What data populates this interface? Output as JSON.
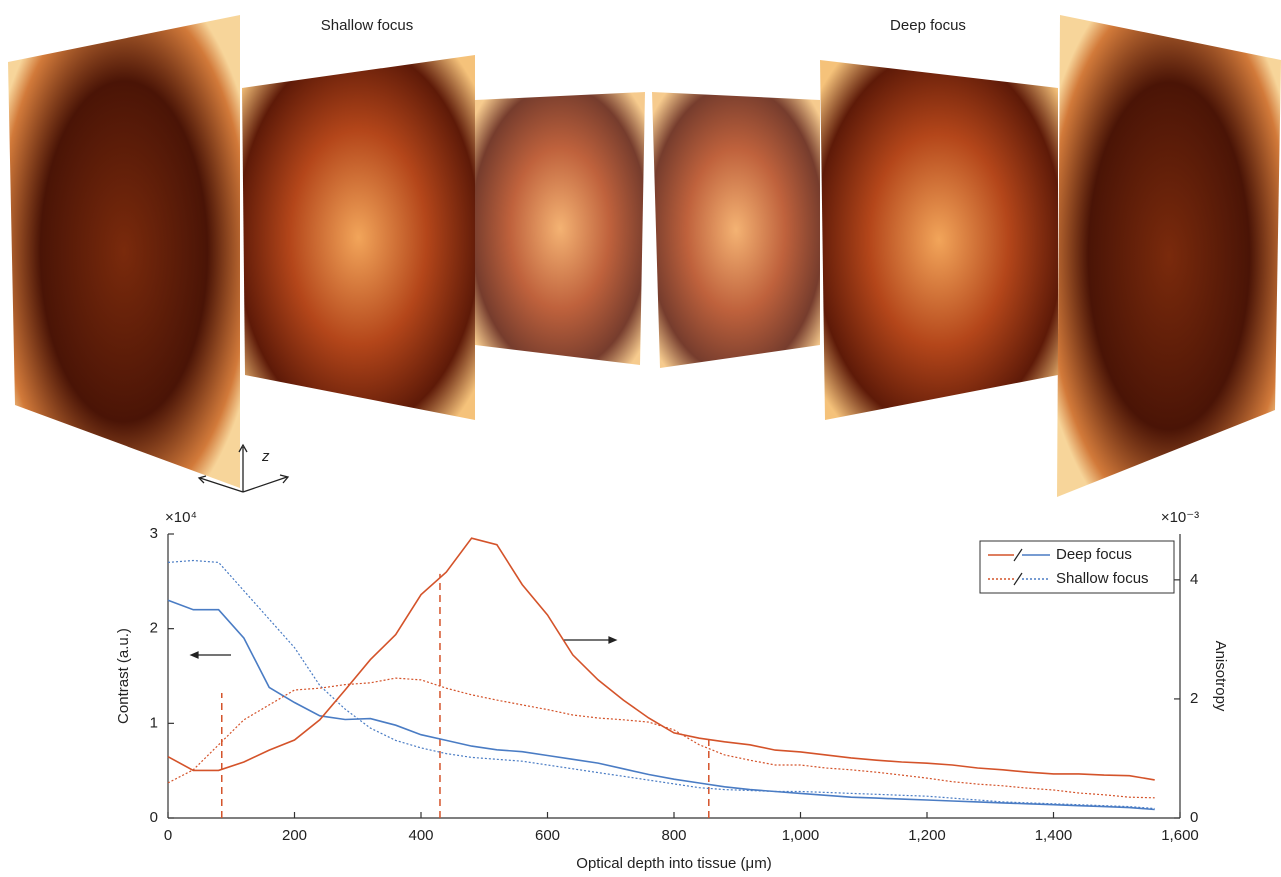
{
  "figure": {
    "left_label": "Shallow focus",
    "right_label": "Deep focus",
    "axis_label": "z"
  },
  "chart_data": {
    "type": "line",
    "xlabel": "Optical depth into tissue (μm)",
    "ylabel": "Contrast (a.u.)",
    "y2label": "Anisotropy",
    "y_multiplier": "×10⁴",
    "y2_multiplier": "×10⁻³",
    "x": [
      0,
      40,
      80,
      120,
      160,
      200,
      240,
      280,
      320,
      360,
      400,
      440,
      480,
      520,
      560,
      600,
      640,
      680,
      720,
      760,
      800,
      840,
      880,
      920,
      960,
      1000,
      1040,
      1080,
      1120,
      1160,
      1200,
      1240,
      1280,
      1320,
      1360,
      1400,
      1440,
      1480,
      1520,
      1560
    ],
    "xlim": [
      0,
      1600
    ],
    "xticks": [
      0,
      200,
      400,
      600,
      800,
      {
        "value": 1000,
        "label": "1,000"
      },
      {
        "value": 1200,
        "label": "1,200"
      },
      {
        "value": 1400,
        "label": "1,400"
      },
      {
        "value": 1600,
        "label": "1,600"
      }
    ],
    "ylim": [
      0,
      3
    ],
    "yticks": [
      0,
      1,
      2,
      3
    ],
    "y2lim": [
      0,
      4.77
    ],
    "y2ticks": [
      0,
      2,
      4
    ],
    "series": [
      {
        "name": "Deep focus",
        "color": "#4a7cc4",
        "style": "solid",
        "values": [
          2.3,
          2.2,
          2.2,
          1.9,
          1.38,
          1.22,
          1.08,
          1.04,
          1.05,
          0.98,
          0.88,
          0.82,
          0.76,
          0.72,
          0.7,
          0.66,
          0.62,
          0.58,
          0.52,
          0.46,
          0.41,
          0.37,
          0.33,
          0.3,
          0.28,
          0.26,
          0.24,
          0.22,
          0.21,
          0.2,
          0.19,
          0.18,
          0.17,
          0.16,
          0.15,
          0.14,
          0.13,
          0.12,
          0.11,
          0.09
        ]
      },
      {
        "name": "Shallow focus",
        "color": "#4a7cc4",
        "style": "dotted",
        "values": [
          2.7,
          2.72,
          2.7,
          2.4,
          2.1,
          1.8,
          1.4,
          1.15,
          0.95,
          0.82,
          0.74,
          0.68,
          0.64,
          0.62,
          0.6,
          0.56,
          0.52,
          0.48,
          0.44,
          0.4,
          0.36,
          0.32,
          0.3,
          0.29,
          0.28,
          0.28,
          0.27,
          0.26,
          0.25,
          0.24,
          0.23,
          0.21,
          0.19,
          0.17,
          0.16,
          0.15,
          0.14,
          0.13,
          0.12,
          0.1
        ]
      },
      {
        "color": "#d4532a",
        "style": "solid",
        "axis": "y2",
        "values": [
          1.03,
          0.8,
          0.8,
          0.94,
          1.14,
          1.31,
          1.65,
          2.15,
          2.66,
          3.08,
          3.75,
          4.13,
          4.7,
          4.59,
          3.92,
          3.41,
          2.74,
          2.32,
          1.98,
          1.68,
          1.43,
          1.34,
          1.28,
          1.23,
          1.14,
          1.11,
          1.06,
          1.01,
          0.97,
          0.94,
          0.92,
          0.89,
          0.84,
          0.81,
          0.77,
          0.74,
          0.74,
          0.72,
          0.71,
          0.64
        ]
      },
      {
        "color": "#d4532a",
        "style": "dotted",
        "axis": "y2",
        "values": [
          0.59,
          0.81,
          1.23,
          1.65,
          1.9,
          2.15,
          2.18,
          2.24,
          2.27,
          2.35,
          2.32,
          2.18,
          2.07,
          1.98,
          1.9,
          1.82,
          1.73,
          1.68,
          1.65,
          1.61,
          1.48,
          1.23,
          1.06,
          0.97,
          0.89,
          0.89,
          0.84,
          0.81,
          0.77,
          0.72,
          0.67,
          0.61,
          0.57,
          0.54,
          0.5,
          0.47,
          0.42,
          0.39,
          0.35,
          0.34
        ]
      }
    ],
    "markers": {
      "color": "#d4532a",
      "x": [
        85,
        430,
        855
      ],
      "y2": [
        2.1,
        4.1,
        1.31
      ]
    },
    "legend": "top-right"
  }
}
